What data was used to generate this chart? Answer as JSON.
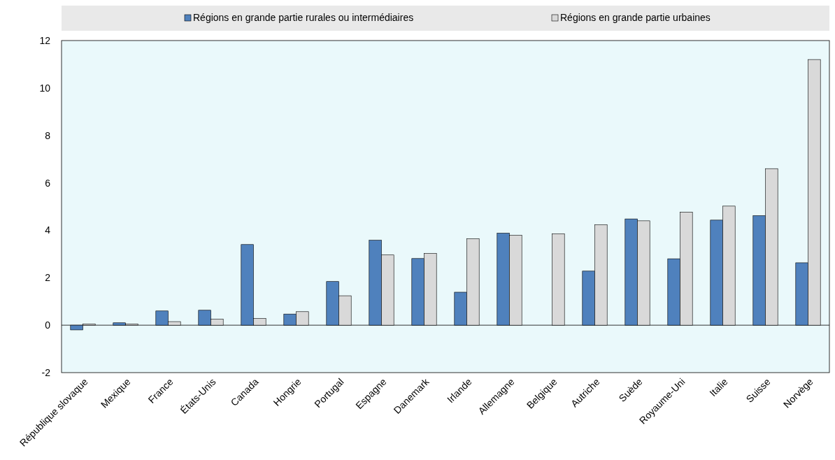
{
  "chart_data": {
    "type": "bar",
    "categories": [
      "République slovaque",
      "Mexique",
      "France",
      "États-Unis",
      "Canada",
      "Hongrie",
      "Portugal",
      "Espagne",
      "Danemark",
      "Irlande",
      "Allemagne",
      "Belgique",
      "Autriche",
      "Suède",
      "Royaume-Uni",
      "Italie",
      "Suisse",
      "Norvège"
    ],
    "series": [
      {
        "name": "Régions en grande partie rurales ou intermédiaires",
        "color": "#4f81bd",
        "values": [
          -0.2,
          0.1,
          0.6,
          0.63,
          3.4,
          0.47,
          1.84,
          3.58,
          2.81,
          1.39,
          3.88,
          null,
          2.28,
          4.48,
          2.8,
          4.43,
          4.62,
          2.63
        ]
      },
      {
        "name": "Régions en grande partie urbaines",
        "color": "#d9d9d9",
        "values": [
          0.05,
          0.05,
          0.15,
          0.25,
          0.28,
          0.57,
          1.24,
          2.96,
          3.02,
          3.64,
          3.79,
          3.85,
          4.23,
          4.4,
          4.77,
          5.02,
          6.6,
          11.2
        ]
      }
    ],
    "ylim": [
      -2,
      12
    ],
    "yticks": [
      -2,
      0,
      2,
      4,
      6,
      8,
      10,
      12
    ],
    "legend": "top"
  }
}
